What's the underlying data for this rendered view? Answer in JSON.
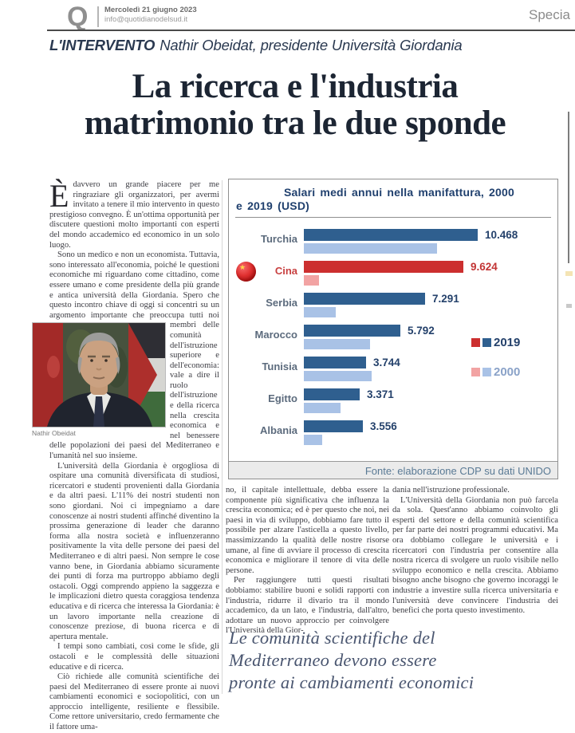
{
  "header": {
    "logo": "Q",
    "date": "Mercoledì 21 giugno 2023",
    "email": "info@quotidianodelsud.it",
    "section": "Specia"
  },
  "kicker": {
    "label": "L'INTERVENTO",
    "rest": "Nathir Obeidat, presidente Università Giordania"
  },
  "headline": {
    "line1": "La ricerca e l'industria",
    "line2": "matrimonio tra le due sponde"
  },
  "article": {
    "col1": {
      "dropcap": "È",
      "p1": "davvero un grande piacere per me ringraziare gli organizzatori, per avermi invitato a tenere il mio intervento in questo prestigioso convegno. È un'ottima opportunità per discutere questioni molto importanti con esperti del mondo accademico ed economico in un solo luogo.",
      "p2a": "Sono un medico e non un economista. Tuttavia, sono interessato all'economia, poiché le questioni economiche mi riguardano come cittadino, come essere umano e come presidente della più grande e antica università della Giordania. Spero che questo incontro chiave di oggi si concentri su un argomento importante che preoccupa",
      "p2b": "tutti noi membri delle comunità dell'istruzione superiore e dell'economia: vale a dire il ruolo dell'istruzione e della ricerca nella crescita economica e nel benessere delle popolazioni dei paesi del Mediterraneo e l'umanità nel suo insieme.",
      "photo_caption": "Nathir Obeidat",
      "p3": "L'università della Giordania è orgogliosa di ospitare una comunità diversificata di studiosi, ricercatori e studenti provenienti dalla Giordania e da altri paesi. L'11% dei nostri studenti non sono giordani. Noi ci impegniamo a dare conoscenze ai nostri studenti affinché diventino la prossima generazione di leader che daranno forma alla nostra società e influenzeranno positivamente la vita delle persone dei paesi del Mediterraneo e di altri paesi. Non sempre le cose vanno bene, in Giordania abbiamo sicuramente dei punti di forza ma purtroppo abbiamo degli ostacoli. Oggi comprendo appieno la saggezza e le implicazioni dietro questa coraggiosa tendenza educativa e di ricerca che interessa la Giordania: è un lavoro importante nella creazione di conoscenze preziose, di buona ricerca e di apertura mentale.",
      "p4": "I tempi sono cambiati, così come le sfide, gli ostacoli e le complessità delle situazioni educative e di ricerca.",
      "p5": "Ciò richiede alle comunità scientifiche dei paesi del Mediterraneo di essere pronte ai nuovi cambiamenti economici e sociopolitici, con un approccio intelligente, resiliente e flessibile. Come rettore universitario, credo fermamente che il fattore uma-"
    },
    "col2": {
      "p1": "no, il capitale intellettuale, debba essere la componente più significativa che influenza la crescita economica; ed è per questo che noi, nei paesi in via di sviluppo, dobbiamo fare tutto il possibile per alzare l'asticella a questo livello, massimizzando la qualità delle nostre risorse umane, al fine di avviare il processo di crescita economica e migliorare il tenore di vita delle persone.",
      "p2": "Per raggiungere tutti questi risultati dobbiamo: stabilire buoni e solidi rapporti con l'industria, ridurre il divario tra il mondo accademico, da un lato, e l'industria, dall'altro, adottare un nuovo approccio per coinvolgere l'Università della Gior-"
    },
    "col3": {
      "p1": "dania nell'istruzione professionale.",
      "p2": "L'Università della Giordania non può farcela da sola. Quest'anno abbiamo coinvolto gli esperti del settore e della comunità scientifica per far parte dei nostri programmi educativi. Ma ora dobbiamo collegare le università e i ricercatori con l'industria per consentire alla nostra ricerca di svolgere un ruolo visibile nello sviluppo economico e nella crescita. Abbiamo bisogno anche bisogno che governo incoraggi le industrie a investire sulla ricerca universitaria e l'università deve convincere l'industria dei benefici che porta questo investimento."
    },
    "pullquote_lines": [
      "Le comunità scientifiche del",
      "Mediterraneo devono essere",
      "pronte ai cambiamenti economici"
    ]
  },
  "chart_data": {
    "type": "bar",
    "orientation": "horizontal",
    "title": "Salari medi annui nella manifattura, 2000 e 2019 (USD)",
    "title_lines": [
      "Salari medi annui nella manifattura, 2000",
      "e 2019 (USD)"
    ],
    "source": "Fonte: elaborazione CDP su dati UNIDO",
    "categories": [
      "Turchia",
      "Cina",
      "Serbia",
      "Marocco",
      "Tunisia",
      "Egitto",
      "Albania"
    ],
    "series": [
      {
        "name": "2019",
        "values": [
          10468,
          9624,
          7291,
          5792,
          3744,
          3371,
          3556
        ],
        "labels": [
          "10.468",
          "9.624",
          "7.291",
          "5.792",
          "3.744",
          "3.371",
          "3.556"
        ]
      },
      {
        "name": "2000",
        "values": [
          8000,
          900,
          1900,
          4000,
          4100,
          2200,
          1100
        ],
        "labels": [
          "",
          "",
          "",
          "",
          "",
          "",
          ""
        ],
        "note": "values estimated from bar lengths, not labeled in figure"
      }
    ],
    "xlim": [
      0,
      10468
    ],
    "legend": [
      "2019",
      "2000"
    ],
    "legend_position": "right",
    "grid": false,
    "highlight_category": "Cina",
    "flag_icon": "china-flag",
    "colors": {
      "bar2019": "#2f5f8f",
      "bar2000": "#a9c2e6",
      "bar2019_cina": "#cc2f2f",
      "bar2000_cina": "#f2a3a3",
      "label": "#5c6b7d",
      "label_cina": "#c84040",
      "value": "#24416b",
      "value_cina": "#c23434",
      "legend2019_text": "#24416b",
      "legend2000_text": "#8aa2c8"
    }
  }
}
